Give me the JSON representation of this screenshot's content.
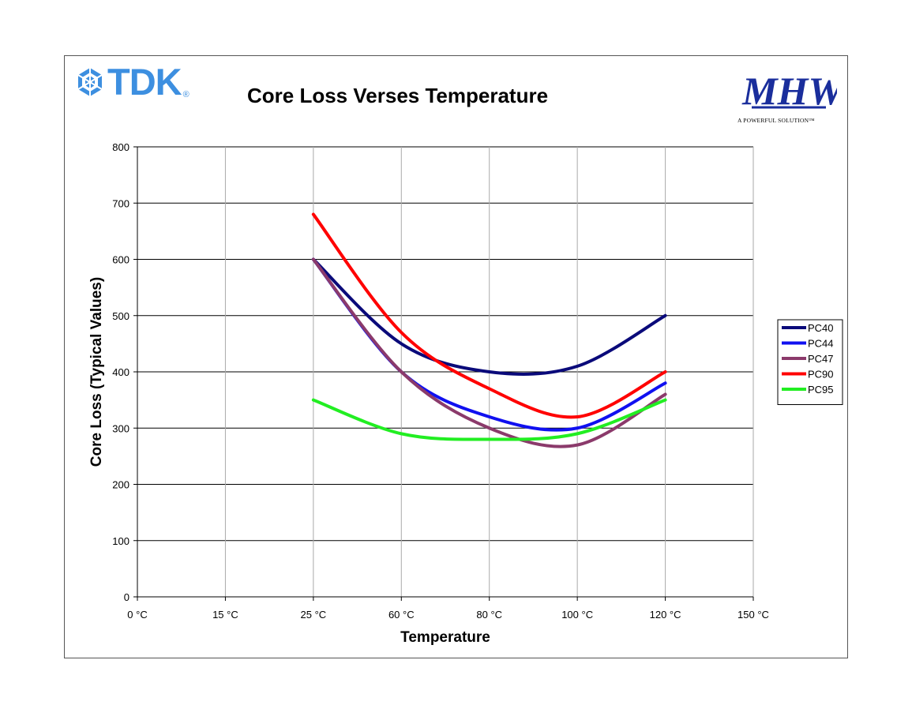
{
  "logos": {
    "tdk_text": "TDK",
    "tdk_mark": "®",
    "mhw_text": "MHW",
    "mhw_tagline": "A POWERFUL SOLUTION™"
  },
  "colors": {
    "tdk_blue": "#3d8fe0",
    "mhw_blue": "#1a2e9c"
  },
  "chart_data": {
    "type": "line",
    "title": "Core Loss Verses Temperature",
    "xlabel": "Temperature",
    "ylabel": "Core Loss (Typical Values)",
    "categories": [
      "0 °C",
      "15 °C",
      "25 °C",
      "60 °C",
      "80 °C",
      "100 °C",
      "120 °C",
      "150 °C"
    ],
    "ylim": [
      0,
      800
    ],
    "yticks": [
      0,
      100,
      200,
      300,
      400,
      500,
      600,
      700,
      800
    ],
    "grid": true,
    "legend_position": "right",
    "series": [
      {
        "name": "PC40",
        "color": "#0a0a7a",
        "values": [
          null,
          null,
          600,
          450,
          400,
          410,
          500,
          null
        ]
      },
      {
        "name": "PC44",
        "color": "#1010f0",
        "values": [
          null,
          null,
          600,
          400,
          320,
          300,
          380,
          null
        ]
      },
      {
        "name": "PC47",
        "color": "#8b3a6b",
        "values": [
          null,
          null,
          600,
          400,
          300,
          270,
          360,
          null
        ]
      },
      {
        "name": "PC90",
        "color": "#ff0000",
        "values": [
          null,
          null,
          680,
          470,
          370,
          320,
          400,
          null
        ]
      },
      {
        "name": "PC95",
        "color": "#22ee22",
        "values": [
          null,
          null,
          350,
          290,
          280,
          290,
          350,
          null
        ]
      }
    ]
  }
}
